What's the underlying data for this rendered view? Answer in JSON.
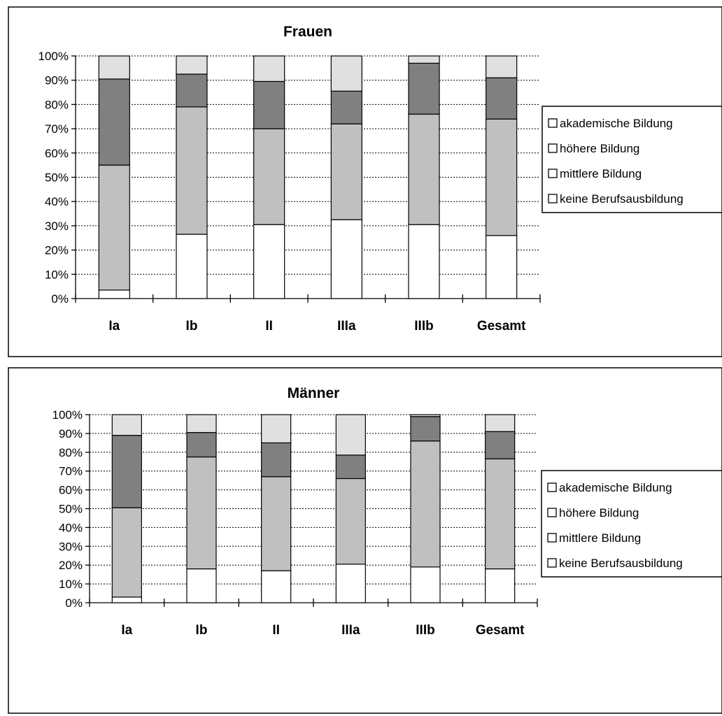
{
  "chart_data": [
    {
      "type": "bar",
      "stacked": true,
      "title": "Frauen",
      "categories": [
        "Ia",
        "Ib",
        "II",
        "IIIa",
        "IIIb",
        "Gesamt"
      ],
      "yticks": [
        "0%",
        "10%",
        "20%",
        "30%",
        "40%",
        "50%",
        "60%",
        "70%",
        "80%",
        "90%",
        "100%"
      ],
      "ylim": [
        0,
        100
      ],
      "grid": true,
      "legend_position": "right",
      "series": [
        {
          "name": "keine Berufsausbildung",
          "color": "#ffffff",
          "values": [
            3.5,
            26.5,
            30.5,
            32.5,
            30.5,
            26
          ]
        },
        {
          "name": "mittlere Bildung",
          "color": "#c0c0c0",
          "values": [
            51.5,
            52.5,
            39.5,
            39.5,
            45.5,
            48
          ]
        },
        {
          "name": "höhere Bildung",
          "color": "#808080",
          "values": [
            35.5,
            13.5,
            19.5,
            13.5,
            21,
            17
          ]
        },
        {
          "name": "akademische Bildung",
          "color": "#e0e0e0",
          "values": [
            9.5,
            7.5,
            10.5,
            14.5,
            3,
            9
          ]
        }
      ],
      "legend_order": [
        "akademische Bildung",
        "höhere Bildung",
        "mittlere Bildung",
        "keine Berufsausbildung"
      ]
    },
    {
      "type": "bar",
      "stacked": true,
      "title": "Männer",
      "categories": [
        "Ia",
        "Ib",
        "II",
        "IIIa",
        "IIIb",
        "Gesamt"
      ],
      "yticks": [
        "0%",
        "10%",
        "20%",
        "30%",
        "40%",
        "50%",
        "60%",
        "70%",
        "80%",
        "90%",
        "100%"
      ],
      "ylim": [
        0,
        100
      ],
      "grid": true,
      "legend_position": "right",
      "series": [
        {
          "name": "keine Berufsausbildung",
          "color": "#ffffff",
          "values": [
            3,
            18,
            17,
            20.5,
            19,
            18
          ]
        },
        {
          "name": "mittlere Bildung",
          "color": "#c0c0c0",
          "values": [
            47.5,
            59.5,
            50,
            45.5,
            67,
            58.5
          ]
        },
        {
          "name": "höhere Bildung",
          "color": "#808080",
          "values": [
            38.5,
            13,
            18,
            12.5,
            13,
            14.5
          ]
        },
        {
          "name": "akademische Bildung",
          "color": "#e0e0e0",
          "values": [
            11,
            9.5,
            15,
            21.5,
            1,
            9
          ]
        }
      ],
      "legend_order": [
        "akademische Bildung",
        "höhere Bildung",
        "mittlere Bildung",
        "keine Berufsausbildung"
      ]
    }
  ]
}
